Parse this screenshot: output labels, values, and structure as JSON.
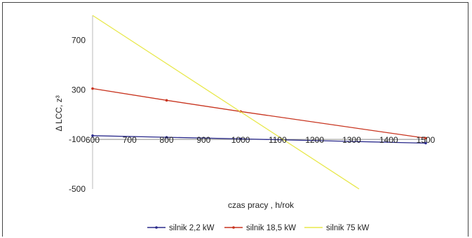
{
  "chart_data": {
    "type": "line",
    "title": "",
    "xlabel": "czas pracy , h/rok",
    "ylabel": "Δ LCC, z³",
    "xlim": [
      600,
      1500
    ],
    "ylim": [
      -500,
      900
    ],
    "x_ticks": [
      600,
      700,
      800,
      900,
      1000,
      1100,
      1200,
      1300,
      1400,
      1500
    ],
    "y_ticks": [
      700,
      300,
      -100,
      -500
    ],
    "y_tick_labels": [
      "700",
      "300",
      "-100",
      "-500"
    ],
    "grid": false,
    "legend_position": "bottom",
    "series": [
      {
        "name": "silnik 2,2 kW",
        "color": "#2b2b8c",
        "marker": "dot",
        "x": [
          600,
          800,
          1000,
          1500
        ],
        "y": [
          -70,
          -83,
          -96,
          -130
        ]
      },
      {
        "name": "silnik 18,5 kW",
        "color": "#c8341f",
        "marker": "dot",
        "x": [
          600,
          800,
          1000,
          1500
        ],
        "y": [
          310,
          215,
          125,
          -90
        ]
      },
      {
        "name": "silnik 75 kW",
        "color": "#e8e84a",
        "marker": "none",
        "x": [
          600,
          1320
        ],
        "y": [
          900,
          -500
        ]
      }
    ]
  }
}
